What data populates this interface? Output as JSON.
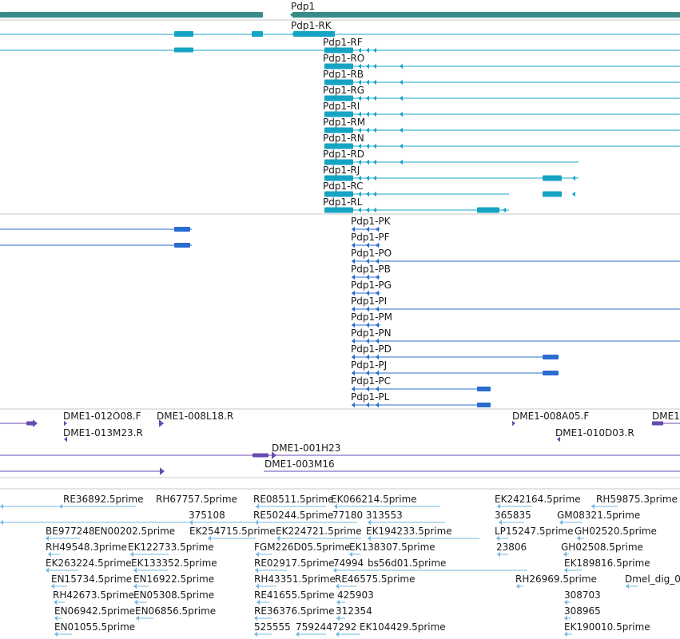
{
  "colors": {
    "gene": "#3a8a8a",
    "transcript": "#16a4c4",
    "protein": "#2a6ccf",
    "clone": "#6a4ab0",
    "est": "#7ab8e0",
    "divider": "#c8c8c8"
  },
  "tracks": {
    "gene": {
      "label": "Pdp1"
    },
    "transcripts": [
      {
        "label": "Pdp1-RK"
      },
      {
        "label": "Pdp1-RF"
      },
      {
        "label": "Pdp1-RO"
      },
      {
        "label": "Pdp1-RB"
      },
      {
        "label": "Pdp1-RG"
      },
      {
        "label": "Pdp1-RI"
      },
      {
        "label": "Pdp1-RM"
      },
      {
        "label": "Pdp1-RN"
      },
      {
        "label": "Pdp1-RD"
      },
      {
        "label": "Pdp1-RJ"
      },
      {
        "label": "Pdp1-RC"
      },
      {
        "label": "Pdp1-RL"
      }
    ],
    "proteins": [
      {
        "label": "Pdp1-PK"
      },
      {
        "label": "Pdp1-PF"
      },
      {
        "label": "Pdp1-PO"
      },
      {
        "label": "Pdp1-PB"
      },
      {
        "label": "Pdp1-PG"
      },
      {
        "label": "Pdp1-PI"
      },
      {
        "label": "Pdp1-PM"
      },
      {
        "label": "Pdp1-PN"
      },
      {
        "label": "Pdp1-PD"
      },
      {
        "label": "Pdp1-PJ"
      },
      {
        "label": "Pdp1-PC"
      },
      {
        "label": "Pdp1-PL"
      }
    ],
    "clones": [
      {
        "label": "DME1-012O08.F"
      },
      {
        "label": "DME1-008L18.R"
      },
      {
        "label": "DME1-008A05.F"
      },
      {
        "label": "DME1"
      },
      {
        "label": "DME1-013M23.R"
      },
      {
        "label": "DME1-010D03.R"
      },
      {
        "label": "DME1-001H23"
      },
      {
        "label": "DME1-003M16"
      }
    ],
    "ests": [
      {
        "label": "RE36892.5prime"
      },
      {
        "label": "RH67757.5prime"
      },
      {
        "label": "RE08511.5prime"
      },
      {
        "label": "EK066214.5prime"
      },
      {
        "label": "EK242164.5prime"
      },
      {
        "label": "RH59875.3prime"
      },
      {
        "label": "375108"
      },
      {
        "label": "RE50244.5prime"
      },
      {
        "label": "77180"
      },
      {
        "label": "313553"
      },
      {
        "label": "365835"
      },
      {
        "label": "GM08321.5prime"
      },
      {
        "label": "BE977248"
      },
      {
        "label": "EN00202.5prime"
      },
      {
        "label": "EK254715.5prime"
      },
      {
        "label": "EK224721.5prime"
      },
      {
        "label": "EK194233.5prime"
      },
      {
        "label": "LP15247.5prime"
      },
      {
        "label": "GH02520.5prime"
      },
      {
        "label": "RH49548.3prime"
      },
      {
        "label": "EK122733.5prime"
      },
      {
        "label": "FGM226D05.5prime"
      },
      {
        "label": "EK138307.5prime"
      },
      {
        "label": "23806"
      },
      {
        "label": "GH02508.5prime"
      },
      {
        "label": "EK263224.5prime"
      },
      {
        "label": "EK133352.5prime"
      },
      {
        "label": "RE02917.5prime"
      },
      {
        "label": "74994"
      },
      {
        "label": "bs56d01.5prime"
      },
      {
        "label": "EK189816.5prime"
      },
      {
        "label": "EN15734.5prime"
      },
      {
        "label": "EN16922.5prime"
      },
      {
        "label": "RH43351.5prime"
      },
      {
        "label": "RE46575.5prime"
      },
      {
        "label": "RH26969.5prime"
      },
      {
        "label": "Dmel_dig_0"
      },
      {
        "label": "RH42673.5prime"
      },
      {
        "label": "EN05308.5prime"
      },
      {
        "label": "RE41655.5prime"
      },
      {
        "label": "425903"
      },
      {
        "label": "308703"
      },
      {
        "label": "EN06942.5prime"
      },
      {
        "label": "EN06856.5prime"
      },
      {
        "label": "RE36376.5prime"
      },
      {
        "label": "312354"
      },
      {
        "label": "308965"
      },
      {
        "label": "EN01055.5prime"
      },
      {
        "label": "525555"
      },
      {
        "label": "7592447292"
      },
      {
        "label": "EK104429.5prime"
      },
      {
        "label": "EK190010.5prime"
      }
    ]
  }
}
